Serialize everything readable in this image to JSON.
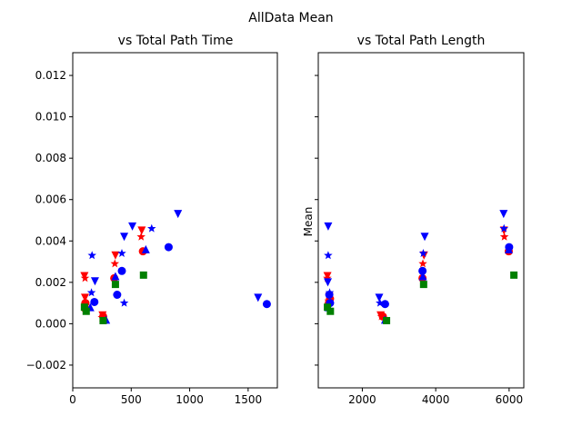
{
  "figure": {
    "suptitle": "AllData Mean"
  },
  "chart_data": [
    {
      "type": "scatter",
      "title": "vs Total Path Time",
      "xlabel": "",
      "ylabel": "",
      "xlim": [
        0,
        1750
      ],
      "ylim": [
        -0.0031,
        0.0131
      ],
      "xticks": [
        0,
        500,
        1000,
        1500
      ],
      "xtick_labels": [
        "0",
        "500",
        "1000",
        "1500"
      ],
      "yticks": [
        -0.002,
        0.0,
        0.002,
        0.004,
        0.006,
        0.008,
        0.01,
        0.012
      ],
      "ytick_labels": [
        "−0.002",
        "0.000",
        "0.002",
        "0.004",
        "0.006",
        "0.008",
        "0.010",
        "0.012"
      ],
      "show_ytick_labels": true,
      "grid": false,
      "series": [
        {
          "color": "#ff0000",
          "marker": "triangle-down",
          "points": [
            [
              100,
              0.0023
            ],
            [
              105,
              0.00125
            ],
            [
              255,
              0.0004
            ],
            [
              365,
              0.0033
            ],
            [
              590,
              0.0045
            ]
          ]
        },
        {
          "color": "#ff0000",
          "marker": "star",
          "points": [
            [
              105,
              0.0022
            ],
            [
              108,
              0.00095
            ],
            [
              250,
              0.0003
            ],
            [
              360,
              0.0029
            ],
            [
              585,
              0.0042
            ]
          ]
        },
        {
          "color": "#ff0000",
          "marker": "circle",
          "points": [
            [
              108,
              0.001
            ],
            [
              110,
              0.0007
            ],
            [
              260,
              0.00035
            ],
            [
              355,
              0.0022
            ],
            [
              600,
              0.0035
            ]
          ]
        },
        {
          "color": "#0000ff",
          "marker": "triangle-down",
          "points": [
            [
              190,
              0.00205
            ],
            [
              440,
              0.0042
            ],
            [
              510,
              0.0047
            ],
            [
              900,
              0.0053
            ],
            [
              1585,
              0.00125
            ]
          ]
        },
        {
          "color": "#0000ff",
          "marker": "star",
          "points": [
            [
              165,
              0.0033
            ],
            [
              160,
              0.0015
            ],
            [
              420,
              0.0034
            ],
            [
              440,
              0.001
            ],
            [
              675,
              0.0046
            ]
          ]
        },
        {
          "color": "#0000ff",
          "marker": "circle",
          "points": [
            [
              185,
              0.00105
            ],
            [
              380,
              0.0014
            ],
            [
              420,
              0.00255
            ],
            [
              820,
              0.0037
            ],
            [
              1660,
              0.00095
            ]
          ]
        },
        {
          "color": "#0000ff",
          "marker": "triangle-up",
          "points": [
            [
              150,
              0.0008
            ],
            [
              285,
              0.0002
            ],
            [
              365,
              0.0023
            ],
            [
              625,
              0.0036
            ]
          ]
        },
        {
          "color": "#008000",
          "marker": "square",
          "points": [
            [
              100,
              0.0008
            ],
            [
              115,
              0.0006
            ],
            [
              260,
              0.00015
            ],
            [
              365,
              0.0019
            ],
            [
              605,
              0.00235
            ]
          ]
        }
      ]
    },
    {
      "type": "scatter",
      "title": "vs Total Path Length",
      "xlabel": "",
      "ylabel": "Mean",
      "xlim": [
        800,
        6400
      ],
      "ylim": [
        -0.0031,
        0.0131
      ],
      "xticks": [
        2000,
        4000,
        6000
      ],
      "xtick_labels": [
        "2000",
        "4000",
        "6000"
      ],
      "yticks": [
        -0.002,
        0.0,
        0.002,
        0.004,
        0.006,
        0.008,
        0.01,
        0.012
      ],
      "ytick_labels": [],
      "show_ytick_labels": false,
      "grid": false,
      "series": [
        {
          "color": "#ff0000",
          "marker": "triangle-down",
          "points": [
            [
              1050,
              0.0023
            ],
            [
              1100,
              0.0013
            ],
            [
              2500,
              0.0004
            ],
            [
              3680,
              0.0033
            ],
            [
              5860,
              0.0045
            ]
          ]
        },
        {
          "color": "#ff0000",
          "marker": "star",
          "points": [
            [
              1045,
              0.0022
            ],
            [
              1080,
              0.0011
            ],
            [
              2520,
              0.00035
            ],
            [
              3650,
              0.0029
            ],
            [
              5870,
              0.0042
            ]
          ]
        },
        {
          "color": "#ff0000",
          "marker": "circle",
          "points": [
            [
              1090,
              0.001
            ],
            [
              1120,
              0.0012
            ],
            [
              2560,
              0.00035
            ],
            [
              3640,
              0.0022
            ],
            [
              5990,
              0.0035
            ]
          ]
        },
        {
          "color": "#0000ff",
          "marker": "triangle-down",
          "points": [
            [
              1070,
              0.0047
            ],
            [
              1060,
              0.002
            ],
            [
              2460,
              0.00125
            ],
            [
              3700,
              0.0042
            ],
            [
              5850,
              0.0053
            ]
          ]
        },
        {
          "color": "#0000ff",
          "marker": "star",
          "points": [
            [
              1070,
              0.0033
            ],
            [
              1110,
              0.0015
            ],
            [
              2480,
              0.001
            ],
            [
              3660,
              0.0034
            ],
            [
              5860,
              0.0046
            ]
          ]
        },
        {
          "color": "#0000ff",
          "marker": "circle",
          "points": [
            [
              1100,
              0.0014
            ],
            [
              1120,
              0.001
            ],
            [
              2620,
              0.00095
            ],
            [
              3640,
              0.00255
            ],
            [
              6000,
              0.0037
            ]
          ]
        },
        {
          "color": "#0000ff",
          "marker": "triangle-up",
          "points": [
            [
              1080,
              0.0008
            ],
            [
              2620,
              0.0002
            ],
            [
              3650,
              0.0023
            ],
            [
              5990,
              0.0036
            ]
          ]
        },
        {
          "color": "#008000",
          "marker": "square",
          "points": [
            [
              1050,
              0.0008
            ],
            [
              1130,
              0.0006
            ],
            [
              2660,
              0.00015
            ],
            [
              3670,
              0.0019
            ],
            [
              6130,
              0.00235
            ]
          ]
        }
      ]
    }
  ]
}
